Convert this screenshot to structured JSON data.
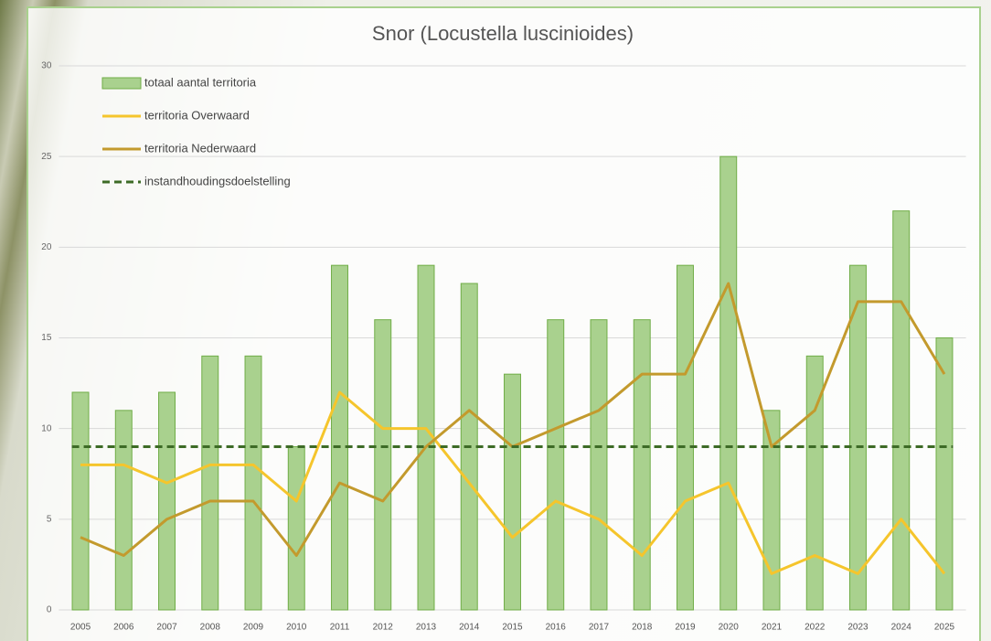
{
  "chart_data": {
    "type": "bar-line",
    "title": "Snor (Locustella luscinioides)",
    "categories": [
      "2005",
      "2006",
      "2007",
      "2008",
      "2009",
      "2010",
      "2011",
      "2012",
      "2013",
      "2014",
      "2015",
      "2016",
      "2017",
      "2018",
      "2019",
      "2020",
      "2021",
      "2022",
      "2023",
      "2024",
      "2025"
    ],
    "series": [
      {
        "name": "totaal aantal territoria",
        "kind": "bar",
        "color": "#a9d18e",
        "stroke": "#70ad47",
        "values": [
          12,
          11,
          12,
          14,
          14,
          9,
          19,
          16,
          19,
          18,
          13,
          16,
          16,
          16,
          19,
          25,
          11,
          14,
          19,
          22,
          15
        ]
      },
      {
        "name": "territoria Overwaard",
        "kind": "line",
        "color": "#f5c52c",
        "values": [
          8,
          8,
          7,
          8,
          8,
          6,
          12,
          10,
          10,
          7,
          4,
          6,
          5,
          3,
          6,
          7,
          2,
          3,
          2,
          5,
          2
        ]
      },
      {
        "name": "territoria Nederwaard",
        "kind": "line",
        "color": "#c39a2d",
        "values": [
          4,
          3,
          5,
          6,
          6,
          3,
          7,
          6,
          9,
          11,
          9,
          10,
          11,
          13,
          13,
          18,
          9,
          11,
          17,
          17,
          13
        ]
      },
      {
        "name": "instandhoudingsdoelstelling",
        "kind": "line",
        "dashed": true,
        "color": "#3d6b26",
        "values": [
          9,
          9,
          9,
          9,
          9,
          9,
          9,
          9,
          9,
          9,
          9,
          9,
          9,
          9,
          9,
          9,
          9,
          9,
          9,
          9,
          9
        ]
      }
    ],
    "ylim": [
      0,
      30
    ],
    "yticks": [
      0,
      5,
      10,
      15,
      20,
      25,
      30
    ],
    "grid": true,
    "legend": "top-left"
  }
}
